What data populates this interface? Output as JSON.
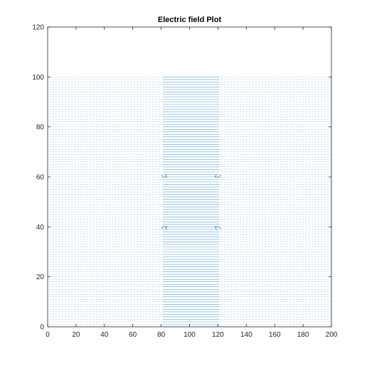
{
  "chart_data": {
    "type": "quiver",
    "title": "Electric field Plot",
    "xlabel": "",
    "ylabel": "",
    "xlim": [
      0,
      200
    ],
    "ylim": [
      0,
      120
    ],
    "x_ticks": [
      0,
      20,
      40,
      60,
      80,
      100,
      120,
      140,
      160,
      180,
      200
    ],
    "y_ticks": [
      0,
      20,
      40,
      60,
      80,
      100,
      120
    ],
    "grid": false,
    "arrow_color": "#3d8fc9",
    "field_region": {
      "x": [
        0,
        200
      ],
      "y": [
        0,
        100
      ]
    },
    "dense_band": {
      "x": [
        81,
        121
      ],
      "y": [
        0,
        100
      ]
    },
    "vortex_points": [
      {
        "x": 82,
        "y": 60
      },
      {
        "x": 120,
        "y": 60
      },
      {
        "x": 82,
        "y": 40
      },
      {
        "x": 120,
        "y": 40
      }
    ]
  }
}
